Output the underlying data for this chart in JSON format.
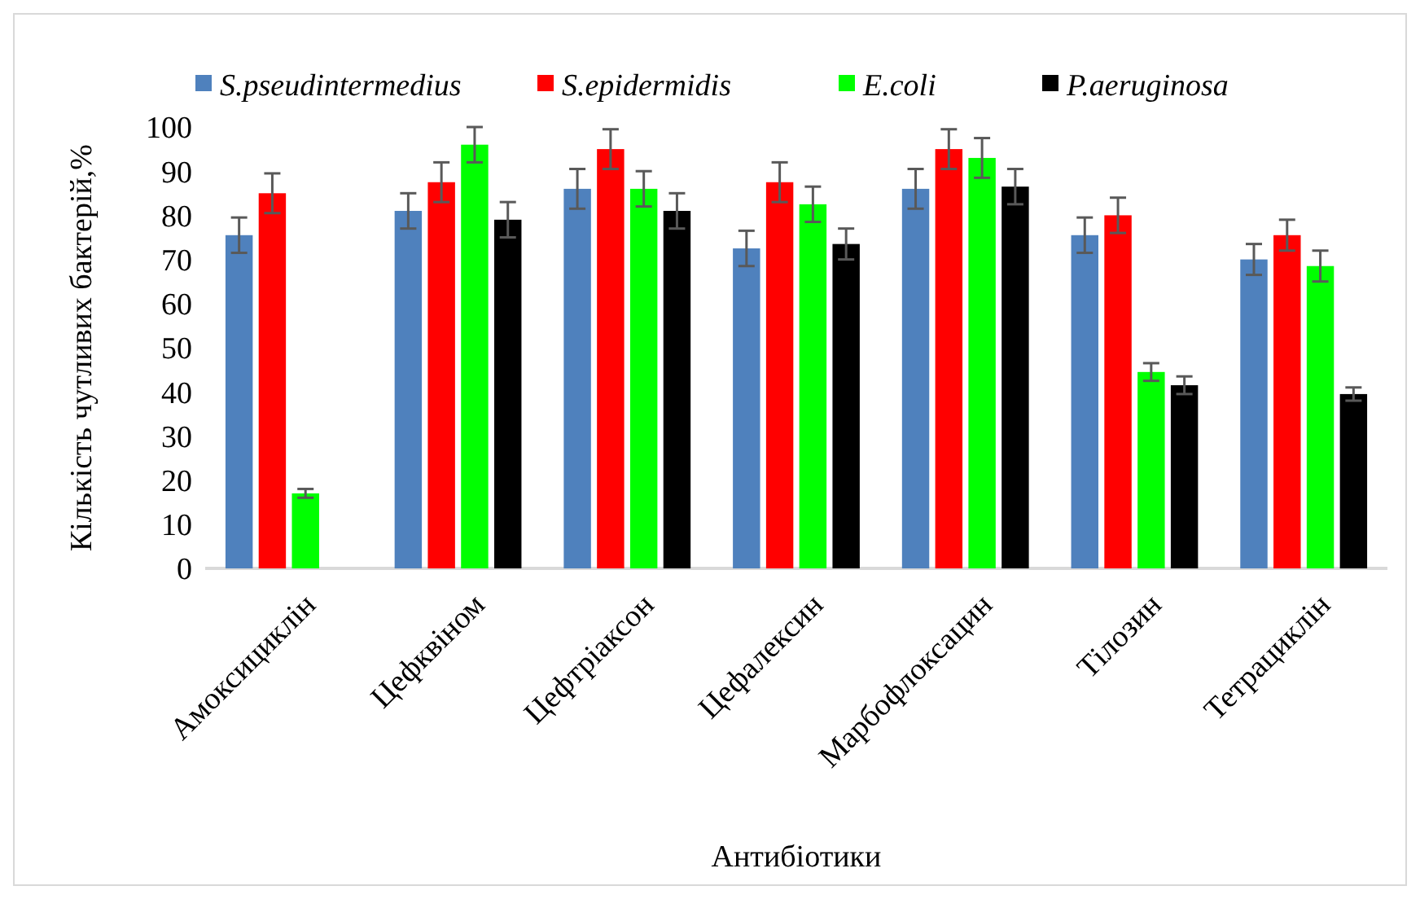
{
  "chart_data": {
    "type": "bar",
    "xlabel": "Антибіотики",
    "ylabel": "Кількість чутливих бактерій,%",
    "categories": [
      "Амоксициклін",
      "Цефквіном",
      "Цефтріаксон",
      "Цефалексин",
      "Марбофлоксацин",
      "Тілозин",
      "Тетрациклін"
    ],
    "series": [
      {
        "name": "S.pseudintermedius",
        "color": "#4f81bd",
        "values": [
          75.5,
          81,
          86,
          72.5,
          86,
          75.5,
          70
        ],
        "errors": [
          4,
          4,
          4.5,
          4,
          4.5,
          4,
          3.5
        ]
      },
      {
        "name": "S.epidermidis",
        "color": "#ff0000",
        "values": [
          85,
          87.5,
          95,
          87.5,
          95,
          80,
          75.5
        ],
        "errors": [
          4.5,
          4.5,
          4.5,
          4.5,
          4.5,
          4,
          3.5
        ]
      },
      {
        "name": "E.coli",
        "color": "#00ff00",
        "values": [
          17,
          96,
          86,
          82.5,
          93,
          44.5,
          68.5
        ],
        "errors": [
          1,
          4,
          4,
          4,
          4.5,
          2,
          3.5
        ]
      },
      {
        "name": "P.aeruginosa",
        "color": "#000000",
        "values": [
          null,
          79,
          81,
          73.5,
          86.5,
          41.5,
          39.5
        ],
        "errors": [
          null,
          4,
          4,
          3.5,
          4,
          2,
          1.5
        ]
      }
    ],
    "ylim": [
      0,
      100
    ],
    "yticks": [
      0,
      10,
      20,
      30,
      40,
      50,
      60,
      70,
      80,
      90,
      100
    ],
    "grid": false,
    "legend": "top"
  }
}
